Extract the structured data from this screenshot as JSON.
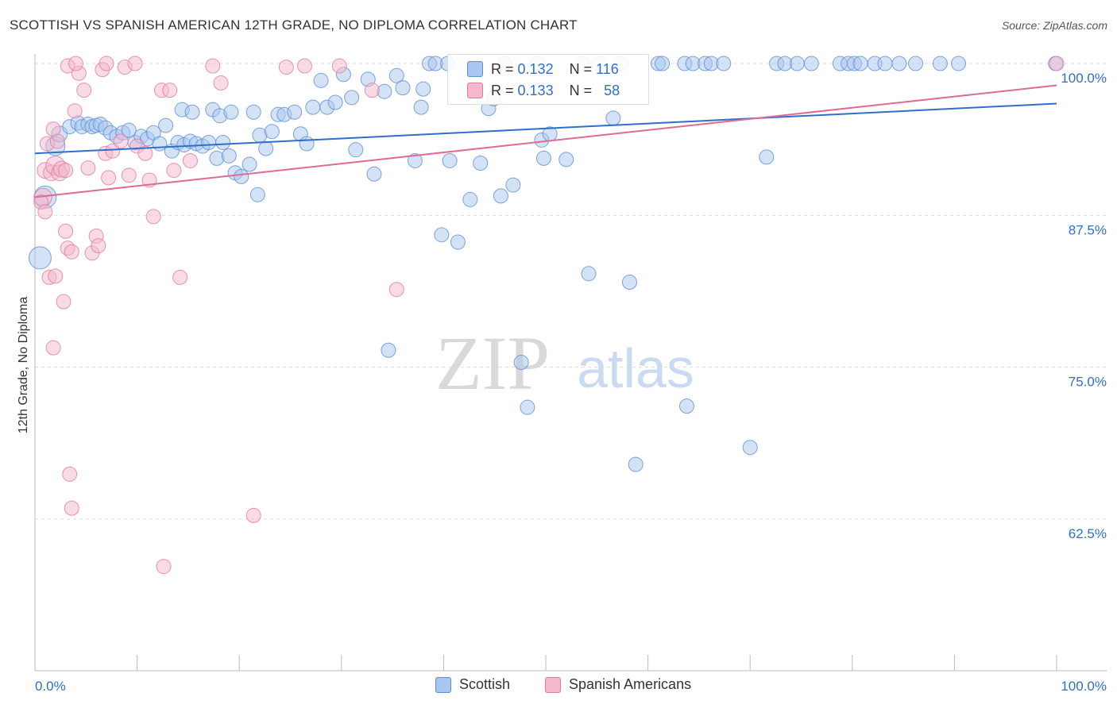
{
  "title": "SCOTTISH VS SPANISH AMERICAN 12TH GRADE, NO DIPLOMA CORRELATION CHART",
  "source": "Source: ZipAtlas.com",
  "watermark": {
    "zip": "ZIP",
    "atlas": "atlas"
  },
  "colors": {
    "blue": "#5b8fd6",
    "blue_fill": "#a9c6ee",
    "pink": "#e07aa0",
    "pink_fill": "#f4b8cc",
    "tick_label": "#2f6fcc"
  },
  "legend_inset": {
    "rows": [
      {
        "r_label": "R =",
        "r_value": "0.132",
        "n_label": "N =",
        "n_value": "116"
      },
      {
        "r_label": "R =",
        "r_value": "0.133",
        "n_label": "N =",
        "n_value": "58"
      }
    ]
  },
  "chart_data": {
    "type": "scatter",
    "title": "SCOTTISH VS SPANISH AMERICAN 12TH GRADE, NO DIPLOMA CORRELATION CHART",
    "xlabel": "",
    "ylabel": "12th Grade, No Diploma",
    "xlim": [
      0,
      100
    ],
    "ylim": [
      52.5,
      101.0
    ],
    "x_tick_labels": [
      "0.0%",
      "100.0%"
    ],
    "y_ticks": [
      62.5,
      75.0,
      87.5,
      100.0
    ],
    "y_tick_labels": [
      "62.5%",
      "75.0%",
      "87.5%",
      "100.0%"
    ],
    "grid": "horizontal dashed",
    "legend": "bottom-center",
    "series": [
      {
        "name": "Scottish",
        "color": "#5b8fd6",
        "trend": {
          "x": [
            0,
            100
          ],
          "y": [
            92.6,
            96.7
          ]
        },
        "points": [
          [
            0.5,
            84.0,
            14
          ],
          [
            1.0,
            89.0,
            14
          ],
          [
            2.0,
            93.2,
            12
          ],
          [
            2.4,
            94.2,
            10
          ],
          [
            3.4,
            94.8,
            9
          ],
          [
            4.2,
            95.1,
            9
          ],
          [
            4.6,
            94.8,
            9
          ],
          [
            5.2,
            95.0,
            9
          ],
          [
            5.6,
            94.8,
            9
          ],
          [
            6.0,
            94.9,
            9
          ],
          [
            6.4,
            95.0,
            9
          ],
          [
            6.9,
            94.7,
            9
          ],
          [
            7.4,
            94.3,
            9
          ],
          [
            8.0,
            94.0,
            9
          ],
          [
            8.6,
            94.3,
            9
          ],
          [
            9.2,
            94.5,
            9
          ],
          [
            9.8,
            93.5,
            9
          ],
          [
            10.4,
            94.0,
            9
          ],
          [
            11.0,
            93.8,
            9
          ],
          [
            11.6,
            94.3,
            9
          ],
          [
            12.2,
            93.4,
            9
          ],
          [
            12.8,
            94.9,
            9
          ],
          [
            13.4,
            92.8,
            9
          ],
          [
            14.0,
            93.5,
            9
          ],
          [
            14.6,
            93.3,
            9
          ],
          [
            15.2,
            93.6,
            9
          ],
          [
            15.8,
            93.4,
            9
          ],
          [
            16.4,
            93.2,
            9
          ],
          [
            17.0,
            93.5,
            9
          ],
          [
            17.8,
            92.2,
            9
          ],
          [
            18.4,
            93.5,
            9
          ],
          [
            19.0,
            92.4,
            9
          ],
          [
            19.6,
            91.0,
            9
          ],
          [
            20.2,
            90.7,
            9
          ],
          [
            21.0,
            91.7,
            9
          ],
          [
            14.4,
            96.2,
            9
          ],
          [
            15.4,
            96.0,
            9
          ],
          [
            17.4,
            96.2,
            9
          ],
          [
            18.1,
            95.7,
            9
          ],
          [
            19.2,
            96.0,
            9
          ],
          [
            21.4,
            96.0,
            9
          ],
          [
            22.0,
            94.1,
            9
          ],
          [
            22.6,
            93.0,
            9
          ],
          [
            23.2,
            94.4,
            9
          ],
          [
            23.8,
            95.8,
            9
          ],
          [
            24.4,
            95.8,
            9
          ],
          [
            25.4,
            96.0,
            9
          ],
          [
            26.0,
            94.2,
            9
          ],
          [
            26.6,
            93.4,
            9
          ],
          [
            27.2,
            96.4,
            9
          ],
          [
            28.0,
            98.6,
            9
          ],
          [
            28.6,
            96.4,
            9
          ],
          [
            29.4,
            96.8,
            9
          ],
          [
            30.2,
            99.1,
            9
          ],
          [
            31.0,
            97.2,
            9
          ],
          [
            31.4,
            92.9,
            9
          ],
          [
            32.6,
            98.7,
            9
          ],
          [
            33.2,
            90.9,
            9
          ],
          [
            34.2,
            97.7,
            9
          ],
          [
            35.4,
            99.0,
            9
          ],
          [
            36.0,
            98.0,
            9
          ],
          [
            37.2,
            92.0,
            9
          ],
          [
            38.0,
            97.9,
            9
          ],
          [
            37.8,
            96.4,
            9
          ],
          [
            38.6,
            100.0,
            9
          ],
          [
            39.2,
            100.0,
            9
          ],
          [
            40.4,
            100.0,
            9
          ],
          [
            40.6,
            92.0,
            9
          ],
          [
            41.4,
            85.3,
            9
          ],
          [
            42.6,
            88.8,
            9
          ],
          [
            43.6,
            91.8,
            9
          ],
          [
            44.4,
            96.3,
            9
          ],
          [
            44.9,
            97.1,
            9
          ],
          [
            45.6,
            89.1,
            9
          ],
          [
            46.0,
            100.0,
            9
          ],
          [
            46.8,
            90.0,
            9
          ],
          [
            47.6,
            75.4,
            9
          ],
          [
            48.2,
            71.7,
            9
          ],
          [
            49.2,
            100.0,
            9
          ],
          [
            49.8,
            92.2,
            9
          ],
          [
            49.6,
            93.7,
            9
          ],
          [
            50.4,
            94.2,
            9
          ],
          [
            52.0,
            92.1,
            9
          ],
          [
            53.6,
            100.0,
            9
          ],
          [
            54.2,
            82.7,
            9
          ],
          [
            55.2,
            100.0,
            9
          ],
          [
            56.6,
            95.5,
            9
          ],
          [
            57.4,
            100.0,
            9
          ],
          [
            58.2,
            82.0,
            9
          ],
          [
            58.8,
            67.0,
            9
          ],
          [
            61.0,
            100.0,
            9
          ],
          [
            61.4,
            100.0,
            9
          ],
          [
            63.6,
            100.0,
            9
          ],
          [
            63.8,
            71.8,
            9
          ],
          [
            64.4,
            100.0,
            9
          ],
          [
            65.6,
            100.0,
            9
          ],
          [
            66.2,
            100.0,
            9
          ],
          [
            67.4,
            100.0,
            9
          ],
          [
            70.0,
            68.4,
            9
          ],
          [
            71.6,
            92.3,
            9
          ],
          [
            72.6,
            100.0,
            9
          ],
          [
            73.4,
            100.0,
            9
          ],
          [
            74.6,
            100.0,
            9
          ],
          [
            76.0,
            100.0,
            9
          ],
          [
            78.8,
            100.0,
            9
          ],
          [
            79.6,
            100.0,
            9
          ],
          [
            80.2,
            100.0,
            9
          ],
          [
            80.8,
            100.0,
            9
          ],
          [
            82.2,
            100.0,
            9
          ],
          [
            83.2,
            100.0,
            9
          ],
          [
            84.6,
            100.0,
            9
          ],
          [
            86.2,
            100.0,
            9
          ],
          [
            88.6,
            100.0,
            9
          ],
          [
            90.4,
            100.0,
            9
          ],
          [
            99.9,
            100.0,
            9
          ],
          [
            21.8,
            89.2,
            9
          ],
          [
            34.6,
            76.4,
            9
          ],
          [
            39.8,
            85.9,
            9
          ]
        ]
      },
      {
        "name": "Spanish Americans",
        "color": "#e07aa0",
        "trend": {
          "x": [
            0,
            100
          ],
          "y": [
            89.0,
            98.2
          ]
        },
        "points": [
          [
            0.8,
            89.0,
            11
          ],
          [
            1.0,
            91.2,
            10
          ],
          [
            1.6,
            91.0,
            10
          ],
          [
            2.0,
            91.6,
            12
          ],
          [
            2.4,
            91.0,
            10
          ],
          [
            2.6,
            91.3,
            10
          ],
          [
            1.2,
            93.4,
            9
          ],
          [
            1.8,
            94.6,
            9
          ],
          [
            2.2,
            93.6,
            9
          ],
          [
            3.0,
            91.2,
            9
          ],
          [
            0.6,
            88.6,
            9
          ],
          [
            1.0,
            87.8,
            9
          ],
          [
            1.4,
            82.4,
            9
          ],
          [
            2.0,
            82.5,
            9
          ],
          [
            2.8,
            80.4,
            9
          ],
          [
            1.8,
            76.6,
            9
          ],
          [
            3.0,
            86.2,
            9
          ],
          [
            3.2,
            84.8,
            9
          ],
          [
            3.6,
            84.5,
            9
          ],
          [
            3.4,
            66.2,
            9
          ],
          [
            3.6,
            63.4,
            9
          ],
          [
            3.9,
            96.1,
            9
          ],
          [
            4.3,
            99.2,
            9
          ],
          [
            4.8,
            97.8,
            9
          ],
          [
            5.2,
            91.4,
            9
          ],
          [
            5.6,
            84.4,
            9
          ],
          [
            6.0,
            85.8,
            9
          ],
          [
            6.2,
            85.0,
            9
          ],
          [
            6.6,
            99.5,
            9
          ],
          [
            6.9,
            92.6,
            9
          ],
          [
            7.2,
            90.6,
            9
          ],
          [
            7.6,
            92.8,
            9
          ],
          [
            8.4,
            93.6,
            9
          ],
          [
            8.8,
            99.7,
            9
          ],
          [
            9.2,
            90.8,
            9
          ],
          [
            10.0,
            93.2,
            9
          ],
          [
            10.8,
            92.6,
            9
          ],
          [
            11.2,
            90.4,
            9
          ],
          [
            11.6,
            87.4,
            9
          ],
          [
            12.4,
            97.8,
            9
          ],
          [
            13.2,
            97.8,
            9
          ],
          [
            13.6,
            91.2,
            9
          ],
          [
            14.2,
            82.4,
            9
          ],
          [
            15.2,
            92.0,
            9
          ],
          [
            17.4,
            99.8,
            9
          ],
          [
            18.2,
            98.4,
            9
          ],
          [
            21.4,
            62.8,
            9
          ],
          [
            24.6,
            99.7,
            9
          ],
          [
            26.4,
            99.8,
            9
          ],
          [
            29.8,
            99.8,
            9
          ],
          [
            33.0,
            97.8,
            9
          ],
          [
            35.4,
            81.4,
            9
          ],
          [
            12.6,
            58.6,
            9
          ],
          [
            3.2,
            99.8,
            9
          ],
          [
            4.0,
            100.0,
            9
          ],
          [
            7.0,
            100.0,
            9
          ],
          [
            9.8,
            100.0,
            9
          ],
          [
            100.0,
            100.0,
            9
          ]
        ]
      }
    ]
  }
}
